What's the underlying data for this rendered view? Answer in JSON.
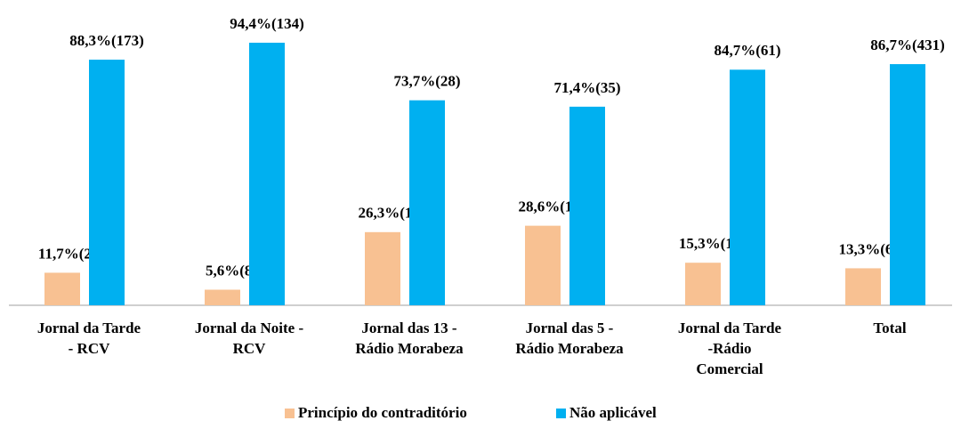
{
  "chart_data": {
    "type": "bar",
    "categories": [
      "Jornal da Tarde\n- RCV",
      "Jornal da Noite -\nRCV",
      "Jornal das 13 -\nRádio Morabeza",
      "Jornal das 5 -\nRádio Morabeza",
      "Jornal da Tarde\n-Rádio\nComercial",
      "Total"
    ],
    "series": [
      {
        "name": "Princípio do contraditório",
        "color": "#f8c192",
        "values": [
          11.7,
          5.6,
          26.3,
          28.6,
          15.3,
          13.3
        ],
        "value_labels": [
          "11,7%(23)",
          "5,6%(8)",
          "26,3%(10)",
          "28,6%(14)",
          "15,3%(11)",
          "13,3%(66)"
        ]
      },
      {
        "name": "Não aplicável",
        "color": "#00b0f0",
        "values": [
          88.3,
          94.4,
          73.7,
          71.4,
          84.7,
          86.7
        ],
        "value_labels": [
          "88,3%(173)",
          "94,4%(134)",
          "73,7%(28)",
          "71,4%(35)",
          "84,7%(61)",
          "86,7%(431)"
        ]
      }
    ],
    "legend": "bottom"
  }
}
